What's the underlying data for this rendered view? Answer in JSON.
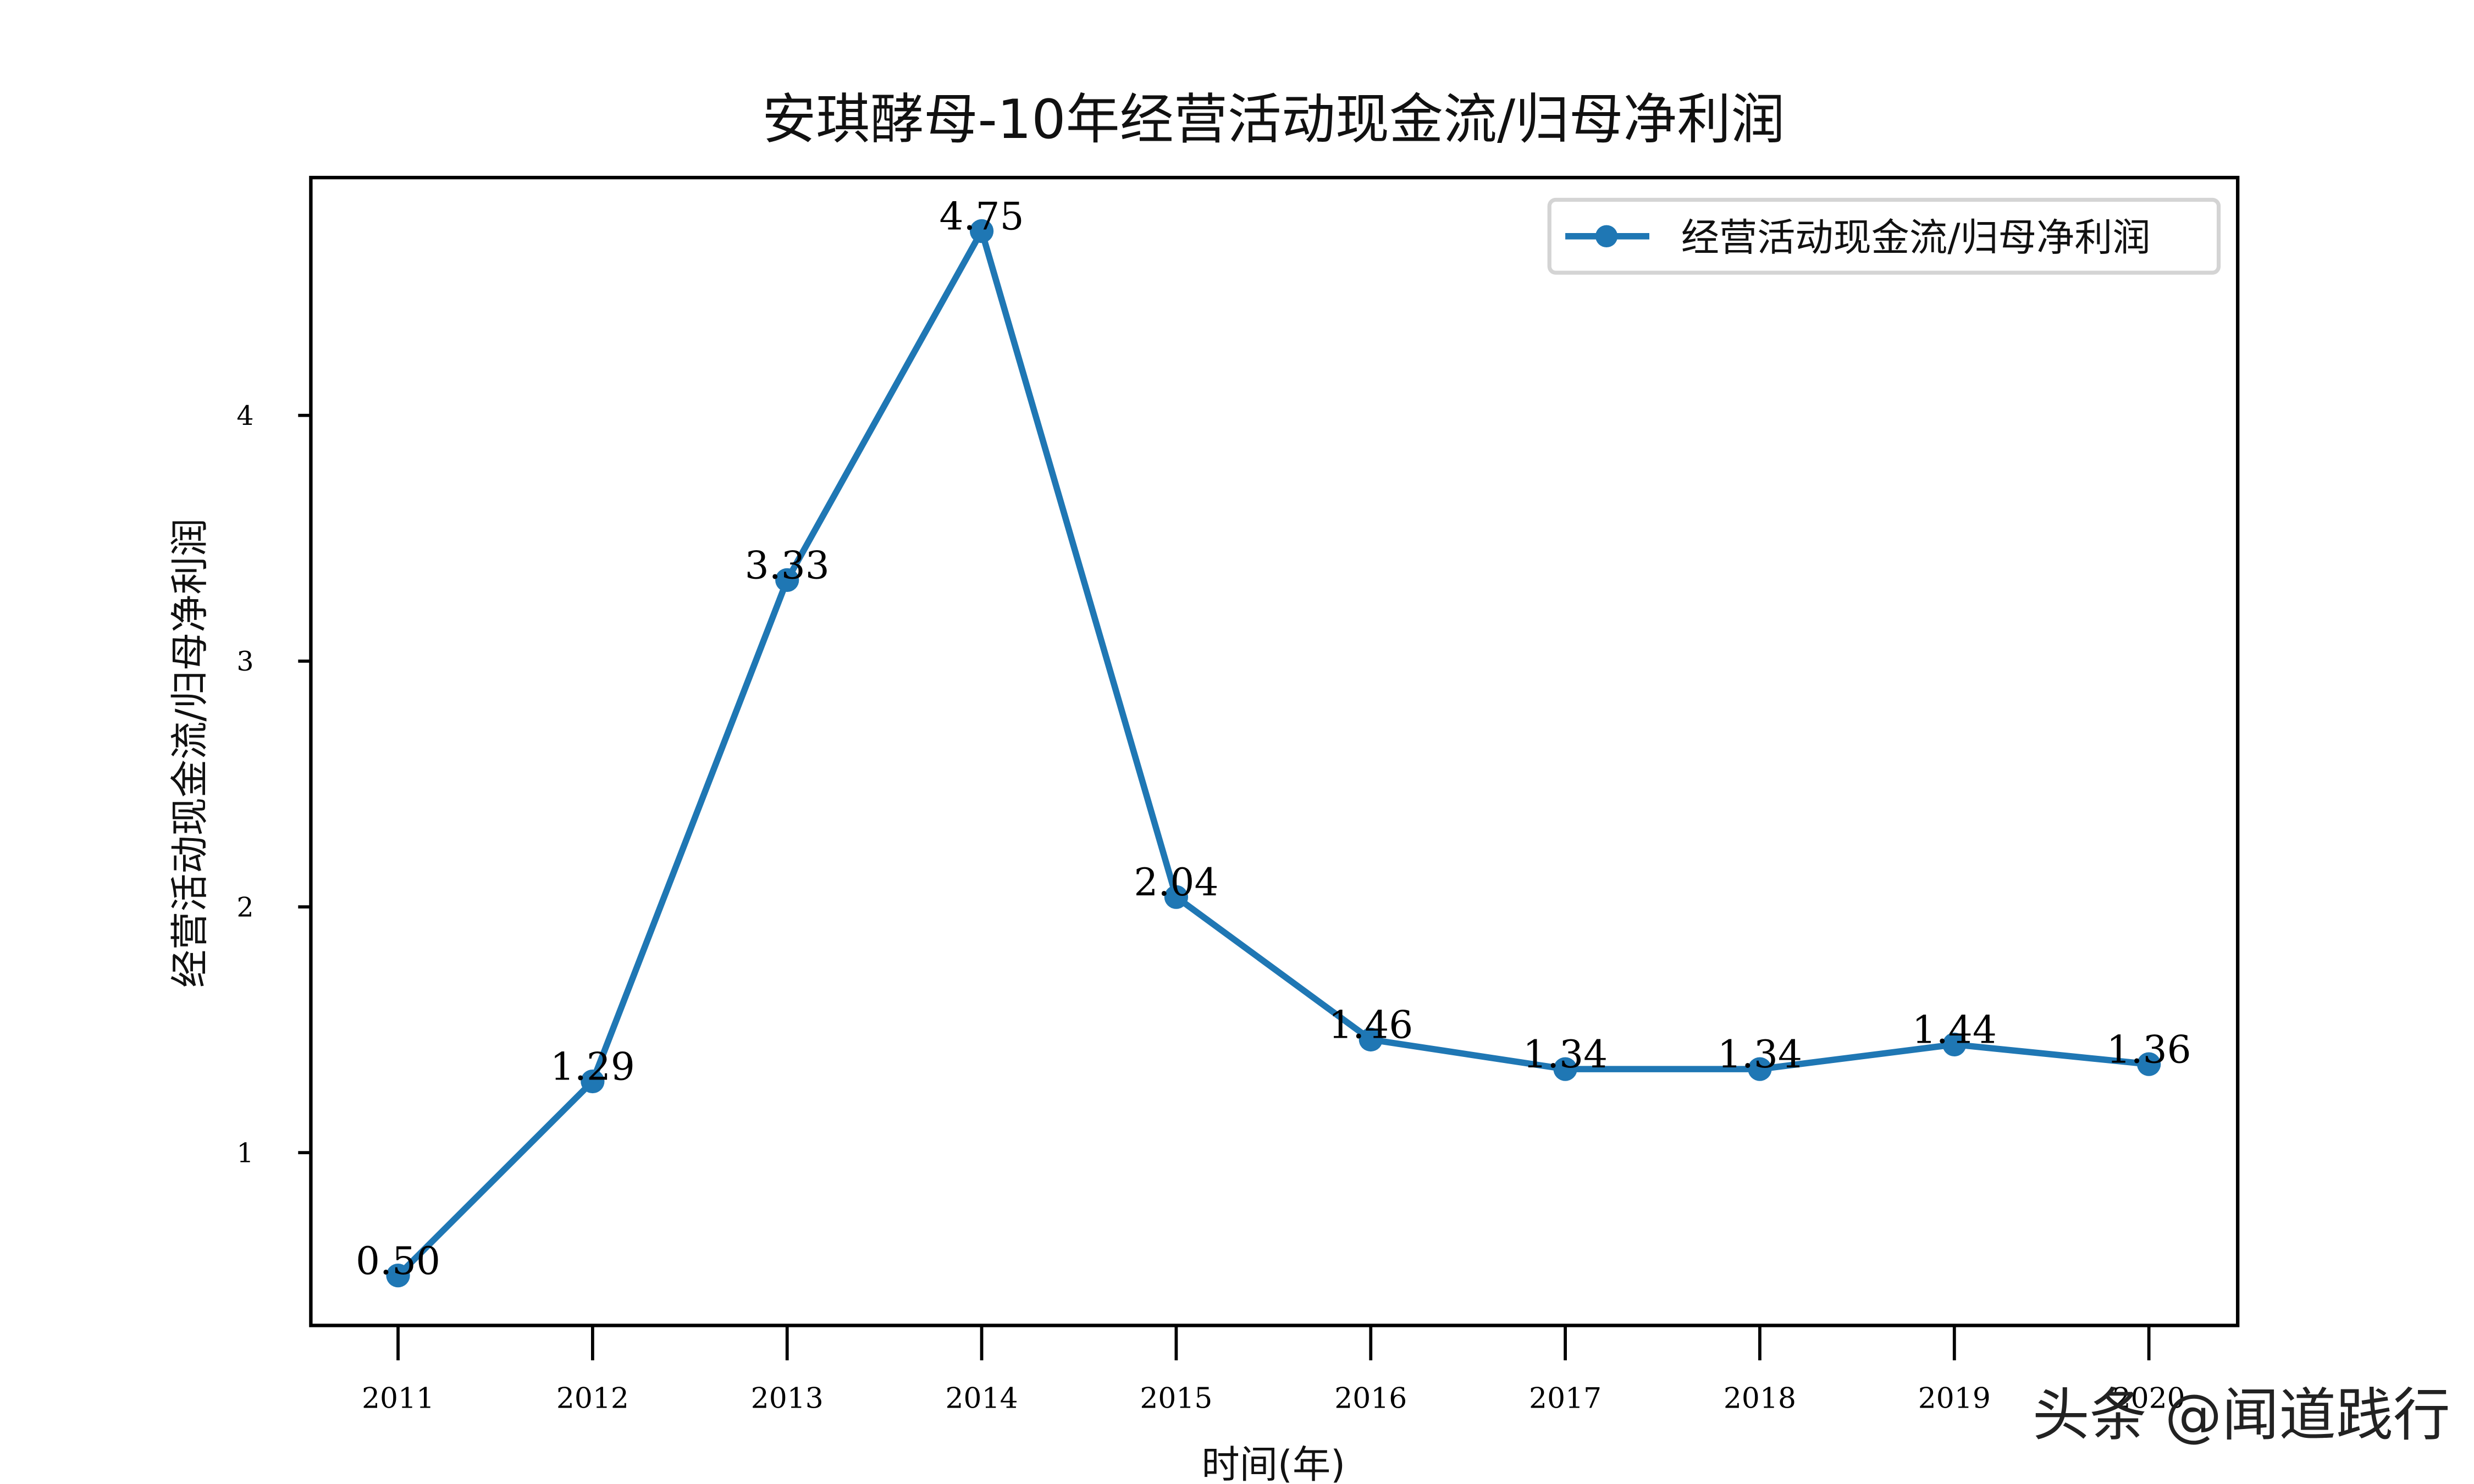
{
  "chart_data": {
    "type": "line",
    "title": "安琪酵母-10年经营活动现金流/归母净利润",
    "xlabel": "时间(年)",
    "ylabel": "经营活动现金流/归母净利润",
    "categories": [
      "2011",
      "2012",
      "2013",
      "2014",
      "2015",
      "2016",
      "2017",
      "2018",
      "2019",
      "2020"
    ],
    "series": [
      {
        "name": "经营活动现金流/归母净利润",
        "color": "#1f77b4",
        "values": [
          0.5,
          1.29,
          3.33,
          4.75,
          2.04,
          1.46,
          1.34,
          1.34,
          1.44,
          1.36
        ]
      }
    ],
    "data_labels": [
      "0.50",
      "1.29",
      "3.33",
      "4.75",
      "2.04",
      "1.46",
      "1.34",
      "1.34",
      "1.44",
      "1.36"
    ],
    "yticks": [
      "1",
      "2",
      "3",
      "4"
    ],
    "ylim": [
      0.29,
      4.96
    ],
    "grid": false,
    "legend_position": "upper right"
  },
  "watermark": "头条 @闻道践行"
}
